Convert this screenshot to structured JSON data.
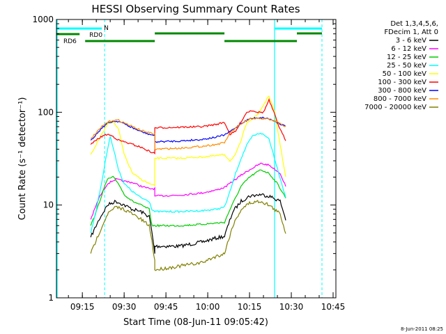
{
  "chart_data": {
    "type": "line",
    "title": "HESSI Observing Summary Count Rates",
    "xlabel": "Start Time (08-Jun-11 09:05:42)",
    "ylabel": "Count Rate (s⁻¹ detector⁻¹)",
    "y_scale": "log",
    "ylim": [
      1,
      1000
    ],
    "xlim": [
      "09:05:42",
      "10:46:00"
    ],
    "x_ticks": [
      "09:15",
      "09:30",
      "09:45",
      "10:00",
      "10:15",
      "10:30",
      "10:45"
    ],
    "y_ticks": [
      "1",
      "10",
      "100",
      "1000"
    ],
    "legend_header": [
      "Det 1,3,4,5,6,",
      "FDecim 1, Att 0"
    ],
    "series": [
      {
        "name": "3 - 6 keV",
        "color": "#000000",
        "points": [
          [
            "09:18",
            4.5
          ],
          [
            "09:21",
            7
          ],
          [
            "09:24",
            10
          ],
          [
            "09:27",
            11
          ],
          [
            "09:30",
            10
          ],
          [
            "09:33",
            9
          ],
          [
            "09:36",
            8.5
          ],
          [
            "09:39",
            7.5
          ],
          [
            "09:40",
            5
          ],
          [
            "09:41",
            3
          ],
          [
            "09:41",
            3.6
          ],
          [
            "09:50",
            3.6
          ],
          [
            "09:58",
            4
          ],
          [
            "10:03",
            4.4
          ],
          [
            "10:06",
            4.6
          ],
          [
            "10:09",
            8.5
          ],
          [
            "10:12",
            11
          ],
          [
            "10:15",
            12.5
          ],
          [
            "10:19",
            13
          ],
          [
            "10:22",
            12.5
          ],
          [
            "10:26",
            11
          ],
          [
            "10:28",
            7
          ]
        ]
      },
      {
        "name": "6 - 12 keV",
        "color": "#ff00ff",
        "points": [
          [
            "09:18",
            7
          ],
          [
            "09:21",
            12
          ],
          [
            "09:24",
            17
          ],
          [
            "09:27",
            19
          ],
          [
            "09:30",
            18
          ],
          [
            "09:33",
            17.5
          ],
          [
            "09:36",
            16
          ],
          [
            "09:39",
            15
          ],
          [
            "09:41",
            15
          ],
          [
            "09:41",
            12.5
          ],
          [
            "09:50",
            12.8
          ],
          [
            "09:58",
            13.5
          ],
          [
            "10:03",
            14.5
          ],
          [
            "10:06",
            15.5
          ],
          [
            "10:09",
            18
          ],
          [
            "10:12",
            21
          ],
          [
            "10:15",
            24
          ],
          [
            "10:19",
            28
          ],
          [
            "10:22",
            27
          ],
          [
            "10:26",
            22
          ],
          [
            "10:28",
            16
          ]
        ]
      },
      {
        "name": "12 - 25 keV",
        "color": "#00cc00",
        "points": [
          [
            "09:18",
            6
          ],
          [
            "09:20",
            8.5
          ],
          [
            "09:22",
            13
          ],
          [
            "09:24",
            19
          ],
          [
            "09:26",
            20
          ],
          [
            "09:28",
            17
          ],
          [
            "09:30",
            13
          ],
          [
            "09:33",
            11
          ],
          [
            "09:36",
            10
          ],
          [
            "09:39",
            9
          ],
          [
            "09:40",
            6
          ],
          [
            "09:41",
            6
          ],
          [
            "09:50",
            6
          ],
          [
            "09:58",
            6.2
          ],
          [
            "10:03",
            6.4
          ],
          [
            "10:06",
            6.5
          ],
          [
            "10:08",
            9
          ],
          [
            "10:10",
            12
          ],
          [
            "10:12",
            16
          ],
          [
            "10:15",
            20
          ],
          [
            "10:19",
            24
          ],
          [
            "10:22",
            22
          ],
          [
            "10:25",
            17
          ],
          [
            "10:28",
            12
          ]
        ]
      },
      {
        "name": "25 - 50 keV",
        "color": "#00ffff",
        "points": [
          [
            "09:18",
            5
          ],
          [
            "09:20",
            9
          ],
          [
            "09:22",
            18
          ],
          [
            "09:24",
            40
          ],
          [
            "09:25",
            55
          ],
          [
            "09:26",
            42
          ],
          [
            "09:28",
            24
          ],
          [
            "09:30",
            17
          ],
          [
            "09:33",
            14
          ],
          [
            "09:36",
            12
          ],
          [
            "09:39",
            11
          ],
          [
            "09:40",
            9
          ],
          [
            "09:41",
            8.5
          ],
          [
            "09:50",
            8.5
          ],
          [
            "09:58",
            8.7
          ],
          [
            "10:03",
            9
          ],
          [
            "10:06",
            9.5
          ],
          [
            "10:08",
            14
          ],
          [
            "10:10",
            22
          ],
          [
            "10:12",
            32
          ],
          [
            "10:14",
            44
          ],
          [
            "10:16",
            55
          ],
          [
            "10:19",
            60
          ],
          [
            "10:22",
            52
          ],
          [
            "10:25",
            25
          ],
          [
            "10:28",
            12
          ]
        ]
      },
      {
        "name": "50 - 100 keV",
        "color": "#ffff00",
        "points": [
          [
            "09:18",
            35
          ],
          [
            "09:20",
            45
          ],
          [
            "09:22",
            58
          ],
          [
            "09:24",
            75
          ],
          [
            "09:26",
            80
          ],
          [
            "09:28",
            65
          ],
          [
            "09:30",
            35
          ],
          [
            "09:33",
            22
          ],
          [
            "09:36",
            19
          ],
          [
            "09:39",
            17
          ],
          [
            "09:41",
            16
          ],
          [
            "09:41",
            32
          ],
          [
            "09:50",
            32
          ],
          [
            "09:58",
            33
          ],
          [
            "10:03",
            34
          ],
          [
            "10:06",
            35
          ],
          [
            "10:08",
            30
          ],
          [
            "10:10",
            35
          ],
          [
            "10:12",
            50
          ],
          [
            "10:14",
            78
          ],
          [
            "10:16",
            85
          ],
          [
            "10:18",
            95
          ],
          [
            "10:20",
            120
          ],
          [
            "10:22",
            150
          ],
          [
            "10:24",
            100
          ],
          [
            "10:26",
            45
          ],
          [
            "10:28",
            20
          ]
        ]
      },
      {
        "name": "100 - 300 keV",
        "color": "#ff0000",
        "points": [
          [
            "09:18",
            45
          ],
          [
            "09:20",
            50
          ],
          [
            "09:22",
            55
          ],
          [
            "09:24",
            58
          ],
          [
            "09:26",
            55
          ],
          [
            "09:28",
            50
          ],
          [
            "09:30",
            48
          ],
          [
            "09:33",
            45
          ],
          [
            "09:36",
            42
          ],
          [
            "09:39",
            38
          ],
          [
            "09:41",
            36
          ],
          [
            "09:41",
            68
          ],
          [
            "09:50",
            69
          ],
          [
            "09:58",
            70
          ],
          [
            "10:03",
            74
          ],
          [
            "10:06",
            78
          ],
          [
            "10:08",
            58
          ],
          [
            "10:10",
            62
          ],
          [
            "10:12",
            80
          ],
          [
            "10:14",
            100
          ],
          [
            "10:16",
            105
          ],
          [
            "10:18",
            100
          ],
          [
            "10:20",
            100
          ],
          [
            "10:22",
            135
          ],
          [
            "10:24",
            95
          ],
          [
            "10:26",
            65
          ],
          [
            "10:28",
            50
          ]
        ]
      },
      {
        "name": "300 - 800 keV",
        "color": "#0000ff",
        "points": [
          [
            "09:18",
            50
          ],
          [
            "09:20",
            58
          ],
          [
            "09:22",
            68
          ],
          [
            "09:24",
            76
          ],
          [
            "09:26",
            80
          ],
          [
            "09:28",
            80
          ],
          [
            "09:30",
            75
          ],
          [
            "09:33",
            68
          ],
          [
            "09:36",
            62
          ],
          [
            "09:39",
            58
          ],
          [
            "09:41",
            56
          ],
          [
            "09:41",
            48
          ],
          [
            "09:50",
            49
          ],
          [
            "09:58",
            51
          ],
          [
            "10:03",
            54
          ],
          [
            "10:06",
            57
          ],
          [
            "10:08",
            62
          ],
          [
            "10:10",
            68
          ],
          [
            "10:12",
            76
          ],
          [
            "10:15",
            85
          ],
          [
            "10:19",
            88
          ],
          [
            "10:22",
            85
          ],
          [
            "10:25",
            78
          ],
          [
            "10:28",
            70
          ]
        ]
      },
      {
        "name": "800 - 7000 keV",
        "color": "#ff8c00",
        "points": [
          [
            "09:18",
            52
          ],
          [
            "09:20",
            60
          ],
          [
            "09:22",
            70
          ],
          [
            "09:24",
            78
          ],
          [
            "09:26",
            82
          ],
          [
            "09:28",
            82
          ],
          [
            "09:30",
            77
          ],
          [
            "09:33",
            70
          ],
          [
            "09:36",
            64
          ],
          [
            "09:39",
            60
          ],
          [
            "09:41",
            58
          ],
          [
            "09:41",
            40
          ],
          [
            "09:50",
            41
          ],
          [
            "09:58",
            43
          ],
          [
            "10:03",
            45
          ],
          [
            "10:06",
            47
          ],
          [
            "10:08",
            60
          ],
          [
            "10:10",
            67
          ],
          [
            "10:12",
            75
          ],
          [
            "10:15",
            84
          ],
          [
            "10:19",
            86
          ],
          [
            "10:22",
            84
          ],
          [
            "10:25",
            78
          ],
          [
            "10:28",
            70
          ]
        ]
      },
      {
        "name": "7000 - 20000 keV",
        "color": "#808000",
        "points": [
          [
            "09:18",
            3
          ],
          [
            "09:21",
            5
          ],
          [
            "09:24",
            8
          ],
          [
            "09:27",
            9.5
          ],
          [
            "09:30",
            9
          ],
          [
            "09:33",
            8
          ],
          [
            "09:36",
            7
          ],
          [
            "09:39",
            6
          ],
          [
            "09:40",
            4
          ],
          [
            "09:41",
            2.5
          ],
          [
            "09:41",
            2
          ],
          [
            "09:50",
            2.2
          ],
          [
            "09:58",
            2.4
          ],
          [
            "10:03",
            2.8
          ],
          [
            "10:06",
            3
          ],
          [
            "10:09",
            6
          ],
          [
            "10:12",
            9
          ],
          [
            "10:15",
            10.5
          ],
          [
            "10:19",
            11
          ],
          [
            "10:22",
            10
          ],
          [
            "10:26",
            8
          ],
          [
            "10:28",
            5
          ]
        ]
      }
    ],
    "flags": [
      {
        "label": "N",
        "color": "#00ffff",
        "segments": [
          [
            "09:05:42",
            "09:22"
          ],
          [
            "10:24",
            "10:41"
          ]
        ]
      },
      {
        "label": "RD0",
        "color": "#008800",
        "segments": [
          [
            "09:05:42",
            "09:14"
          ]
        ]
      },
      {
        "label": "RD6",
        "color": "#008800",
        "segments": [
          [
            "09:16",
            "09:41"
          ],
          [
            "09:41",
            "10:06"
          ],
          [
            "10:06",
            "10:32"
          ],
          [
            "10:32",
            "10:41"
          ]
        ]
      }
    ],
    "vertical_markers": {
      "solid": [
        "09:05:42",
        "10:24"
      ],
      "dashed": [
        "09:23",
        "10:41"
      ]
    },
    "grid": false,
    "legend_position": "right"
  },
  "footer": {
    "timestamp": "8-Jun-2011 08:25"
  }
}
